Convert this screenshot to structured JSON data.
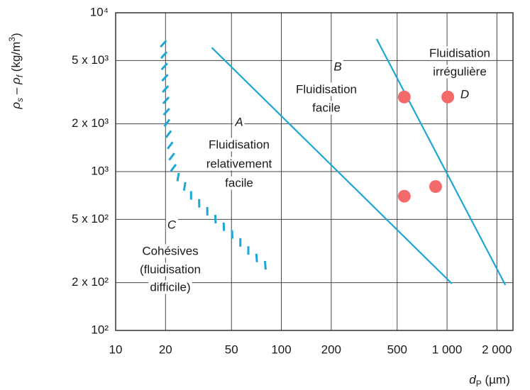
{
  "chart_data": {
    "type": "line",
    "log_x": true,
    "log_y": true,
    "grid": true,
    "xlim": [
      10,
      2500
    ],
    "ylim": [
      100,
      10000
    ],
    "xticks": [
      10,
      20,
      50,
      100,
      200,
      500,
      {
        "value": 1000,
        "label": "1 000"
      },
      {
        "value": 2000,
        "label": "2 000"
      }
    ],
    "yticks": [
      {
        "value": 100,
        "label": "10²"
      },
      {
        "value": 200,
        "label": "2 x 10²"
      },
      {
        "value": 500,
        "label": "5 x 10²"
      },
      {
        "value": 1000,
        "label": "10³"
      },
      {
        "value": 2000,
        "label": "2 x 10³"
      },
      {
        "value": 5000,
        "label": "5 x 10³"
      },
      {
        "value": 10000,
        "label": "10⁴"
      }
    ],
    "xlabel": [
      "d",
      "P",
      " (µm)"
    ],
    "ylabel": [
      "ρ",
      "s",
      " – ρ",
      "f",
      " (kg/m",
      "3",
      ")"
    ],
    "series": [
      {
        "style": "hatched",
        "color": "#1ea6d6",
        "x": [
          19,
          20,
          22,
          28,
          39,
          52,
          65,
          85
        ],
        "values": [
          6500,
          2000,
          1000,
          700,
          500,
          380,
          300,
          237
        ]
      },
      {
        "style": "solid",
        "color": "#1ea6d6",
        "x": [
          38,
          1070
        ],
        "values": [
          6040,
          197
        ]
      },
      {
        "style": "solid",
        "color": "#1ea6d6",
        "x": [
          376,
          2250
        ],
        "values": [
          6840,
          193
        ]
      }
    ],
    "points": {
      "color": "#f26a6a",
      "x": [
        552,
        1010,
        552,
        853
      ],
      "values": [
        2950,
        2950,
        700,
        805
      ]
    },
    "annotations": [
      "A",
      "Fluidisation",
      "relativement",
      "facile",
      "B",
      "Fluidisation",
      "facile",
      "Fluidisation",
      "irrégulière",
      "D",
      "C",
      "Cohésives",
      "(fluidisation",
      "difficile)"
    ]
  }
}
